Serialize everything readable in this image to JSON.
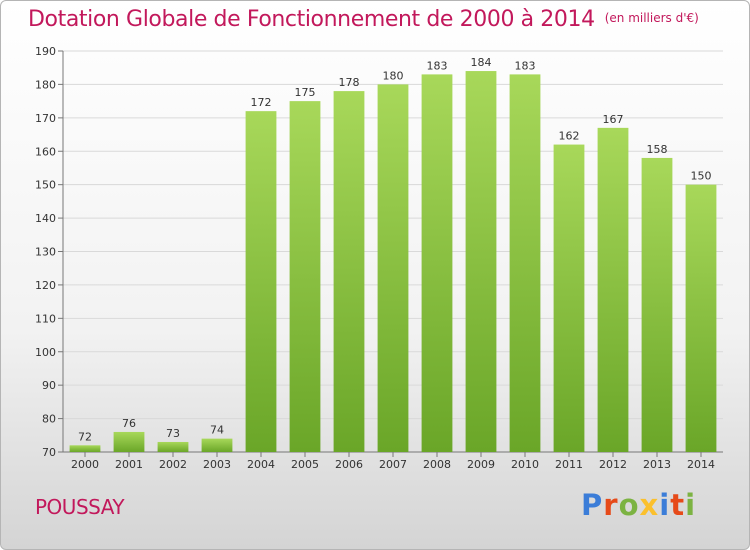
{
  "header": {
    "title": "Dotation Globale de Fonctionnement de 2000 à 2014",
    "unit": "(en milliers d'€)"
  },
  "footer": {
    "commune": "POUSSAY",
    "brand": "Proxiti",
    "brand_colors": [
      "#3b7dd8",
      "#e64a19",
      "#7cb342",
      "#fbc02d",
      "#3b7dd8",
      "#e64a19",
      "#7cb342"
    ]
  },
  "chart_data": {
    "type": "bar",
    "title": "Dotation Globale de Fonctionnement de 2000 à 2014",
    "subtitle": "(en milliers d'€)",
    "categories": [
      "2000",
      "2001",
      "2002",
      "2003",
      "2004",
      "2005",
      "2006",
      "2007",
      "2008",
      "2009",
      "2010",
      "2011",
      "2012",
      "2013",
      "2014"
    ],
    "values": [
      72,
      76,
      73,
      74,
      172,
      175,
      178,
      180,
      183,
      184,
      183,
      162,
      167,
      158,
      150
    ],
    "data_labels": [
      "72",
      "76",
      "73",
      "74",
      "172",
      "175",
      "178",
      "180",
      "183",
      "184",
      "183",
      "162",
      "167",
      "158",
      "150"
    ],
    "ylim": [
      70,
      190
    ],
    "yticks": [
      70,
      80,
      90,
      100,
      110,
      120,
      130,
      140,
      150,
      160,
      170,
      180,
      190
    ],
    "ytick_labels": [
      "70",
      "80",
      "90",
      "100",
      "110",
      "120",
      "130",
      "140",
      "150",
      "160",
      "170",
      "180",
      "190"
    ],
    "grid": true,
    "legend": "none",
    "bar_color_light": "#a8d85a",
    "bar_color_dark": "#6aa628",
    "grid_color": "#d9d9d9"
  }
}
